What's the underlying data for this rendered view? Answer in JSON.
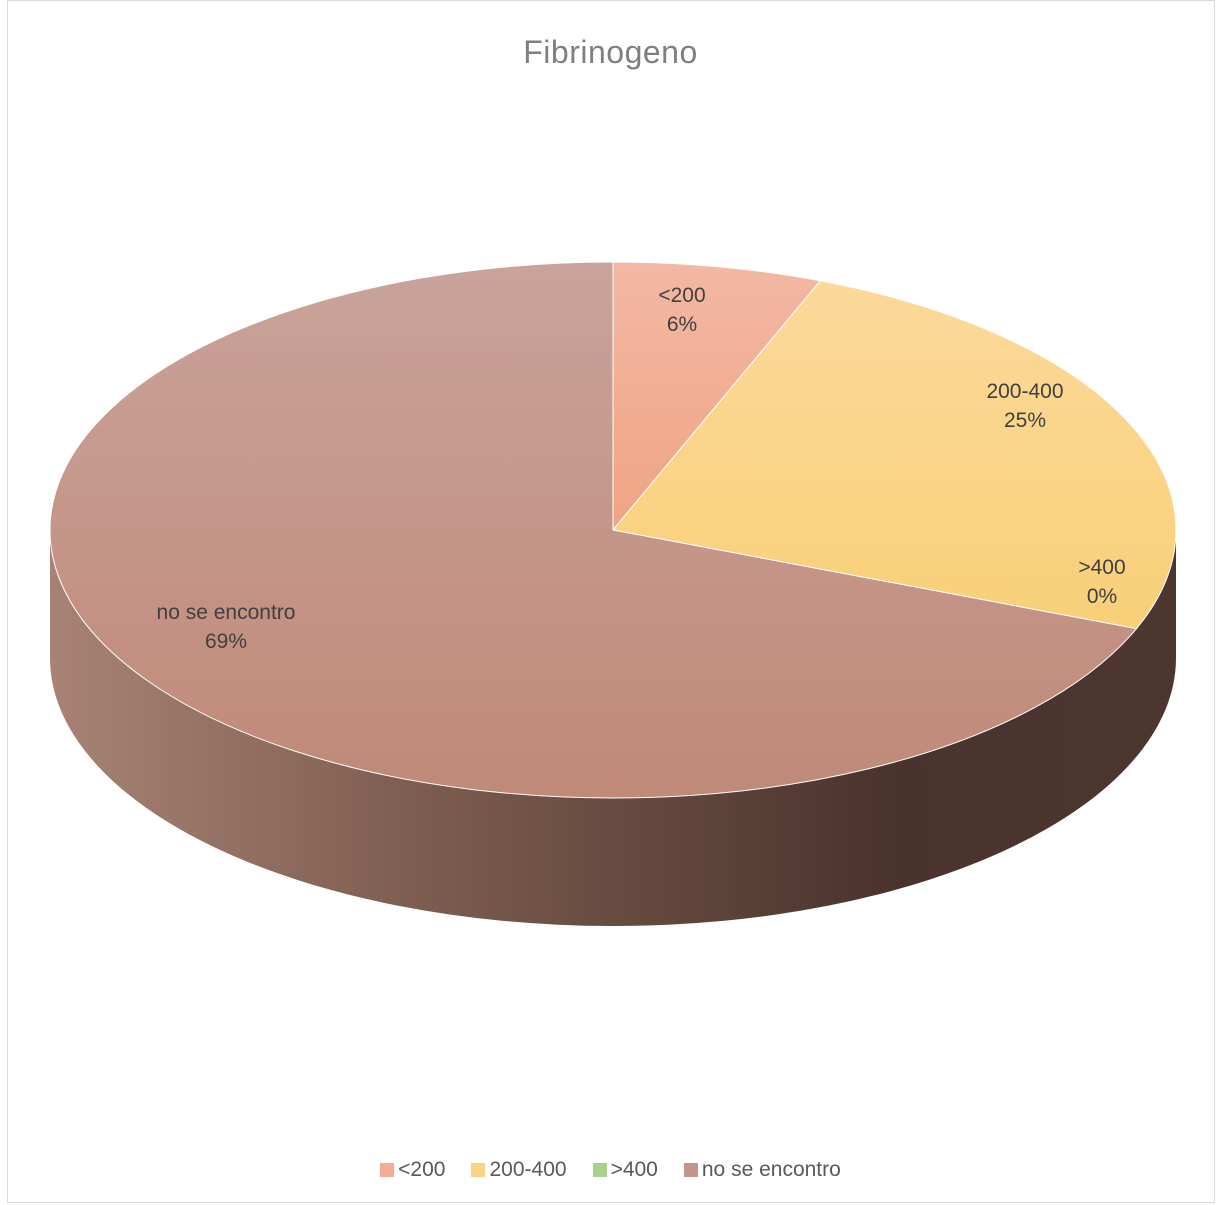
{
  "chart_data": {
    "type": "pie",
    "title": "Fibrinogeno",
    "categories": [
      "<200",
      "200-400",
      ">400",
      "no se encontro"
    ],
    "values": [
      6,
      25,
      0,
      69
    ],
    "labels": [
      "6%",
      "25%",
      "0%",
      "69%"
    ],
    "colors": [
      "#f2ad94",
      "#fad486",
      "#a9d18e",
      "#c4968a"
    ],
    "legend_position": "bottom"
  }
}
